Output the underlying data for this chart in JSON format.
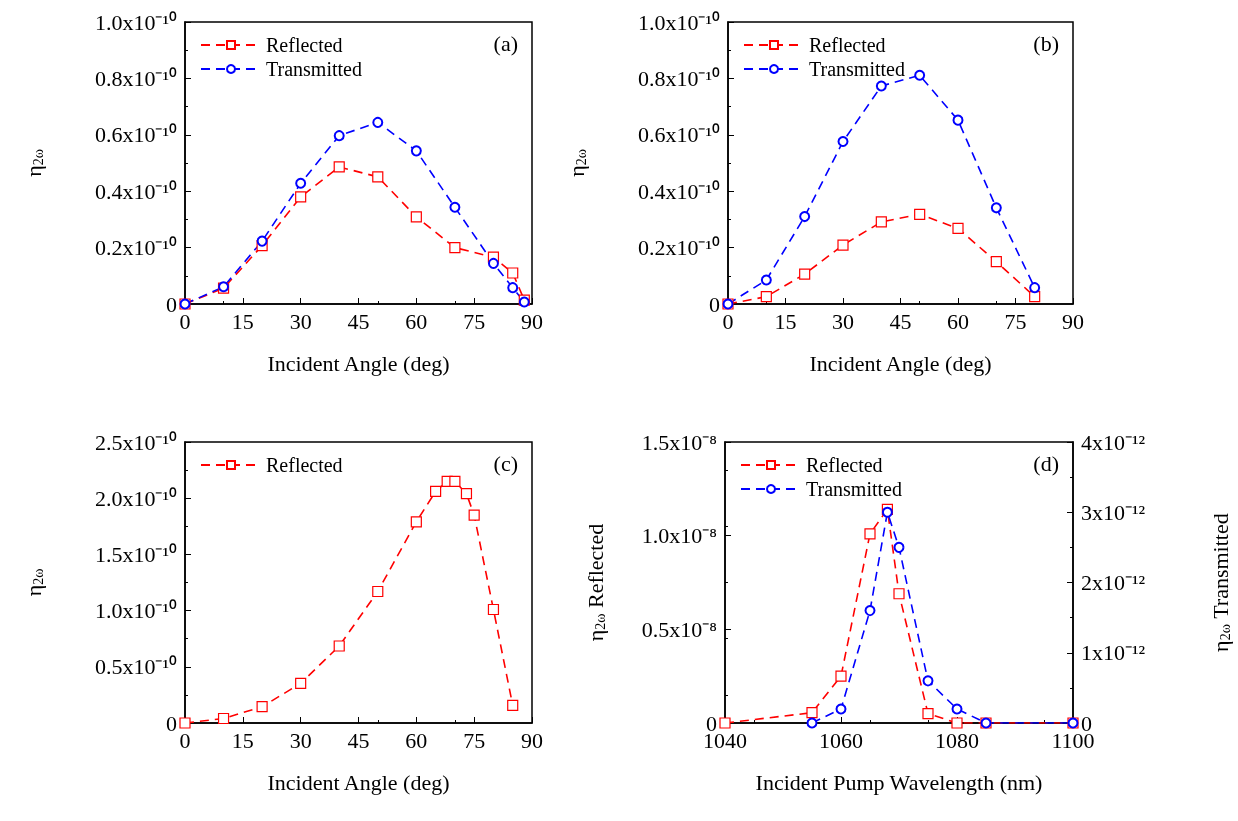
{
  "chart_data": [
    {
      "type": "line",
      "xlabel": "Incident Angle (deg)",
      "ylabel": "η$_{2ω}$",
      "annotations": [
        "(a)"
      ],
      "xlim": [
        0,
        90
      ],
      "xticks": [
        0,
        15,
        30,
        45,
        60,
        75,
        90
      ],
      "ylim": [
        0,
        1e-10
      ],
      "yticks": [
        {
          "value": 0,
          "label": "0"
        },
        {
          "value": 2e-11,
          "label": "0.2x10⁻¹⁰"
        },
        {
          "value": 4e-11,
          "label": "0.4x10⁻¹⁰"
        },
        {
          "value": 6e-11,
          "label": "0.6x10⁻¹⁰"
        },
        {
          "value": 8e-11,
          "label": "0.8x10⁻¹⁰"
        },
        {
          "value": 1e-10,
          "label": "1.0x10⁻¹⁰"
        }
      ],
      "grid": false,
      "legend": "top left",
      "x": [
        0,
        10,
        20,
        30,
        40,
        50,
        60,
        70,
        80,
        85,
        88
      ],
      "series": [
        {
          "name": "Reflected",
          "color": "#ff0000",
          "marker": "square",
          "line_style": "dashed",
          "values": [
            0,
            5.6e-12,
            2.07e-11,
            3.8e-11,
            4.86e-11,
            4.51e-11,
            3.09e-11,
            2e-11,
            1.66e-11,
            1.1e-11,
            1.4e-12
          ]
        },
        {
          "name": "Transmitted",
          "color": "#0000ff",
          "marker": "circle",
          "line_style": "dashed",
          "values": [
            0,
            6.1e-12,
            2.23e-11,
            4.28e-11,
            5.97e-11,
            6.44e-11,
            5.43e-11,
            3.43e-11,
            1.44e-11,
            5.8e-12,
            7e-13
          ]
        }
      ]
    },
    {
      "type": "line",
      "xlabel": "Incident Angle (deg)",
      "ylabel": "η$_{2ω}$",
      "annotations": [
        "(b)"
      ],
      "xlim": [
        0,
        90
      ],
      "xticks": [
        0,
        15,
        30,
        45,
        60,
        75,
        90
      ],
      "ylim": [
        0,
        1e-10
      ],
      "yticks": [
        {
          "value": 0,
          "label": "0"
        },
        {
          "value": 2e-11,
          "label": "0.2x10⁻¹⁰"
        },
        {
          "value": 4e-11,
          "label": "0.4x10⁻¹⁰"
        },
        {
          "value": 6e-11,
          "label": "0.6x10⁻¹⁰"
        },
        {
          "value": 8e-11,
          "label": "0.8x10⁻¹⁰"
        },
        {
          "value": 1e-10,
          "label": "1.0x10⁻¹⁰"
        }
      ],
      "grid": false,
      "legend": "top left",
      "x": [
        0,
        10,
        20,
        30,
        40,
        50,
        60,
        70,
        80
      ],
      "series": [
        {
          "name": "Reflected",
          "color": "#ff0000",
          "marker": "square",
          "line_style": "dashed",
          "values": [
            0,
            2.6e-12,
            1.06e-11,
            2.09e-11,
            2.91e-11,
            3.18e-11,
            2.68e-11,
            1.5e-11,
            2.6e-12
          ]
        },
        {
          "name": "Transmitted",
          "color": "#0000ff",
          "marker": "circle",
          "line_style": "dashed",
          "values": [
            0,
            8.5e-12,
            3.1e-11,
            5.76e-11,
            7.73e-11,
            8.11e-11,
            6.52e-11,
            3.41e-11,
            5.8e-12
          ]
        }
      ]
    },
    {
      "type": "line",
      "xlabel": "Incident Angle (deg)",
      "ylabel": "η$_{2ω}$",
      "annotations": [
        "(c)"
      ],
      "xlim": [
        0,
        90
      ],
      "xticks": [
        0,
        15,
        30,
        45,
        60,
        75,
        90
      ],
      "ylim": [
        0,
        2.5e-10
      ],
      "yticks": [
        {
          "value": 0,
          "label": "0"
        },
        {
          "value": 5e-11,
          "label": "0.5x10⁻¹⁰"
        },
        {
          "value": 1e-10,
          "label": "1.0x10⁻¹⁰"
        },
        {
          "value": 1.5e-10,
          "label": "1.5x10⁻¹⁰"
        },
        {
          "value": 2e-10,
          "label": "2.0x10⁻¹⁰"
        },
        {
          "value": 2.5e-10,
          "label": "2.5x10⁻¹⁰"
        }
      ],
      "grid": false,
      "legend": "top left",
      "x": [
        0,
        10,
        20,
        30,
        40,
        50,
        60,
        65,
        68,
        70,
        73,
        75,
        80,
        85
      ],
      "series": [
        {
          "name": "Reflected",
          "color": "#ff0000",
          "marker": "square",
          "line_style": "dashed",
          "values": [
            0,
            4e-12,
            1.45e-11,
            3.52e-11,
            6.85e-11,
            1.17e-10,
            1.79e-10,
            2.06e-10,
            2.15e-10,
            2.15e-10,
            2.04e-10,
            1.85e-10,
            1.01e-10,
            1.57e-11
          ]
        }
      ]
    },
    {
      "type": "line",
      "xlabel": "Incident Pump Wavelength (nm)",
      "ylabel": "η$_{2ω}$ Reflected",
      "y2label": "η$_{2ω}$ Transmitted",
      "annotations": [
        "(d)"
      ],
      "xlim": [
        1040,
        1100
      ],
      "xticks": [
        1040,
        1060,
        1080,
        1100
      ],
      "ylim": [
        0,
        1.5e-08
      ],
      "yticks": [
        {
          "value": 0,
          "label": "0"
        },
        {
          "value": 5e-09,
          "label": "0.5x10⁻⁸"
        },
        {
          "value": 1e-08,
          "label": "1.0x10⁻⁸"
        },
        {
          "value": 1.5e-08,
          "label": "1.5x10⁻⁸"
        }
      ],
      "y2lim": [
        0,
        4e-12
      ],
      "y2ticks": [
        {
          "value": 0,
          "label": "0"
        },
        {
          "value": 1e-12,
          "label": "1x10⁻¹²"
        },
        {
          "value": 2e-12,
          "label": "2x10⁻¹²"
        },
        {
          "value": 3e-12,
          "label": "3x10⁻¹²"
        },
        {
          "value": 4e-12,
          "label": "4x10⁻¹²"
        }
      ],
      "grid": false,
      "legend": "top left",
      "series": [
        {
          "name": "Reflected",
          "color": "#ff0000",
          "marker": "square",
          "line_style": "dashed",
          "x": [
            1040,
            1055,
            1060,
            1065,
            1068,
            1070,
            1075,
            1080,
            1085,
            1100
          ],
          "values": [
            0,
            5.5e-10,
            2.5e-09,
            1.01e-08,
            1.14e-08,
            6.9e-09,
            5e-10,
            0,
            0,
            0
          ]
        },
        {
          "name": "Transmitted",
          "color": "#0000ff",
          "marker": "circle",
          "line_style": "dashed",
          "axis": "y2",
          "x": [
            1055,
            1060,
            1065,
            1068,
            1070,
            1075,
            1080,
            1085,
            1100
          ],
          "values": [
            0,
            2e-13,
            1.6e-12,
            3e-12,
            2.5e-12,
            6e-13,
            2e-13,
            0,
            0
          ]
        }
      ]
    }
  ]
}
